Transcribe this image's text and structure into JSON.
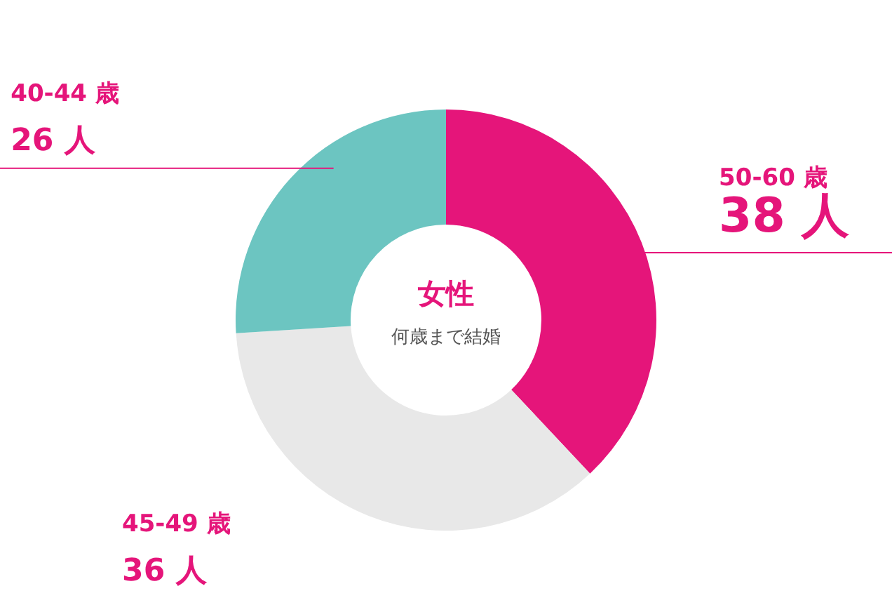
{
  "chart_data": {
    "type": "donut",
    "title": "女性",
    "subtitle": "何歳まで結婚",
    "categories": [
      "50-60 歳",
      "45-49 歳",
      "40-44 歳"
    ],
    "values": [
      38,
      36,
      26
    ],
    "colors": [
      "#e5157a",
      "#e8e8e8",
      "#6cc5c1"
    ],
    "value_labels": [
      "38 人",
      "36 人",
      "26 人"
    ]
  }
}
